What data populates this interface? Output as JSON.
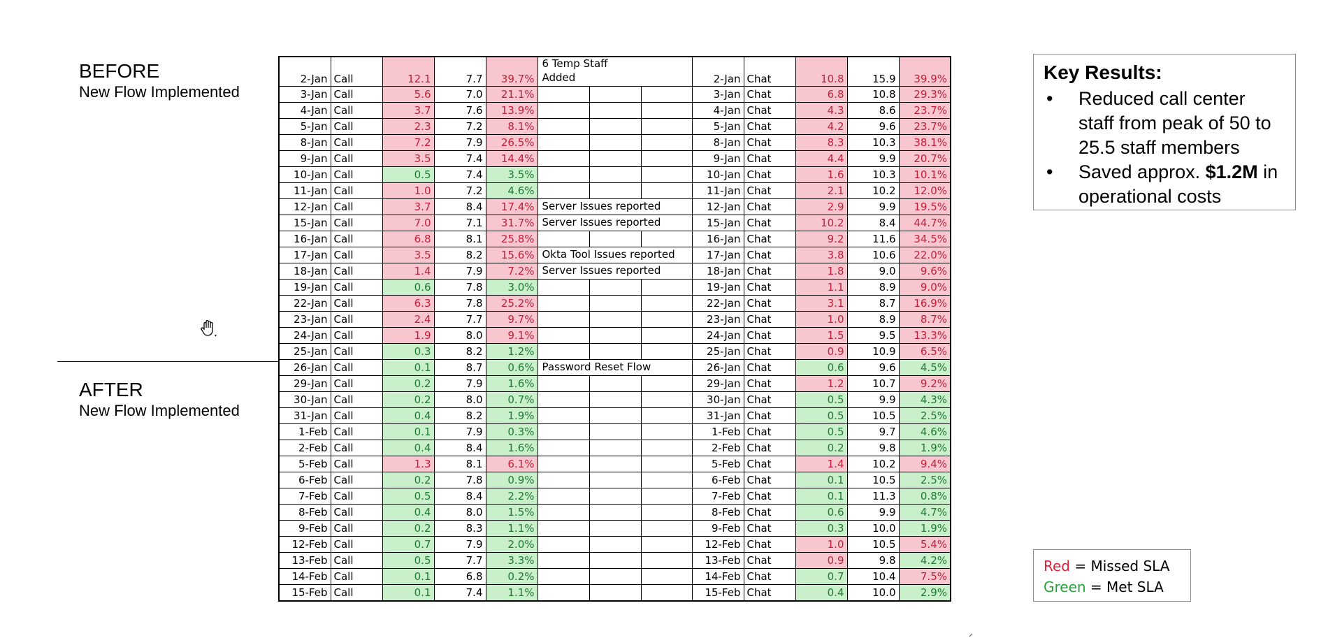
{
  "before": {
    "title": "BEFORE",
    "subtitle": "New Flow Implemented"
  },
  "after": {
    "title": "AFTER",
    "subtitle": "New Flow Implemented"
  },
  "table": {
    "rows": [
      {
        "call_date": "2-Jan",
        "call_type": "Call",
        "call_a": "12.1",
        "call_a_status": "red",
        "call_b": "7.7",
        "call_pct": "39.7%",
        "call_pct_status": "red",
        "note": "6 Temp Staff Added",
        "chat_date": "2-Jan",
        "chat_type": "Chat",
        "chat_a": "10.8",
        "chat_a_status": "red",
        "chat_b": "15.9",
        "chat_pct": "39.9%",
        "chat_pct_status": "red"
      },
      {
        "call_date": "3-Jan",
        "call_type": "Call",
        "call_a": "5.6",
        "call_a_status": "red",
        "call_b": "7.0",
        "call_pct": "21.1%",
        "call_pct_status": "red",
        "note": "",
        "chat_date": "3-Jan",
        "chat_type": "Chat",
        "chat_a": "6.8",
        "chat_a_status": "red",
        "chat_b": "10.8",
        "chat_pct": "29.3%",
        "chat_pct_status": "red"
      },
      {
        "call_date": "4-Jan",
        "call_type": "Call",
        "call_a": "3.7",
        "call_a_status": "red",
        "call_b": "7.6",
        "call_pct": "13.9%",
        "call_pct_status": "red",
        "note": "",
        "chat_date": "4-Jan",
        "chat_type": "Chat",
        "chat_a": "4.3",
        "chat_a_status": "red",
        "chat_b": "8.6",
        "chat_pct": "23.7%",
        "chat_pct_status": "red"
      },
      {
        "call_date": "5-Jan",
        "call_type": "Call",
        "call_a": "2.3",
        "call_a_status": "red",
        "call_b": "7.2",
        "call_pct": "8.1%",
        "call_pct_status": "red",
        "note": "",
        "chat_date": "5-Jan",
        "chat_type": "Chat",
        "chat_a": "4.2",
        "chat_a_status": "red",
        "chat_b": "9.6",
        "chat_pct": "23.7%",
        "chat_pct_status": "red"
      },
      {
        "call_date": "8-Jan",
        "call_type": "Call",
        "call_a": "7.2",
        "call_a_status": "red",
        "call_b": "7.9",
        "call_pct": "26.5%",
        "call_pct_status": "red",
        "note": "",
        "chat_date": "8-Jan",
        "chat_type": "Chat",
        "chat_a": "8.3",
        "chat_a_status": "red",
        "chat_b": "10.3",
        "chat_pct": "38.1%",
        "chat_pct_status": "red"
      },
      {
        "call_date": "9-Jan",
        "call_type": "Call",
        "call_a": "3.5",
        "call_a_status": "red",
        "call_b": "7.4",
        "call_pct": "14.4%",
        "call_pct_status": "red",
        "note": "",
        "chat_date": "9-Jan",
        "chat_type": "Chat",
        "chat_a": "4.4",
        "chat_a_status": "red",
        "chat_b": "9.9",
        "chat_pct": "20.7%",
        "chat_pct_status": "red"
      },
      {
        "call_date": "10-Jan",
        "call_type": "Call",
        "call_a": "0.5",
        "call_a_status": "green",
        "call_b": "7.4",
        "call_pct": "3.5%",
        "call_pct_status": "green",
        "note": "",
        "chat_date": "10-Jan",
        "chat_type": "Chat",
        "chat_a": "1.6",
        "chat_a_status": "red",
        "chat_b": "10.3",
        "chat_pct": "10.1%",
        "chat_pct_status": "red"
      },
      {
        "call_date": "11-Jan",
        "call_type": "Call",
        "call_a": "1.0",
        "call_a_status": "red",
        "call_b": "7.2",
        "call_pct": "4.6%",
        "call_pct_status": "green",
        "note": "",
        "chat_date": "11-Jan",
        "chat_type": "Chat",
        "chat_a": "2.1",
        "chat_a_status": "red",
        "chat_b": "10.2",
        "chat_pct": "12.0%",
        "chat_pct_status": "red"
      },
      {
        "call_date": "12-Jan",
        "call_type": "Call",
        "call_a": "3.7",
        "call_a_status": "red",
        "call_b": "8.4",
        "call_pct": "17.4%",
        "call_pct_status": "red",
        "note": "Server Issues reported",
        "chat_date": "12-Jan",
        "chat_type": "Chat",
        "chat_a": "2.9",
        "chat_a_status": "red",
        "chat_b": "9.9",
        "chat_pct": "19.5%",
        "chat_pct_status": "red"
      },
      {
        "call_date": "15-Jan",
        "call_type": "Call",
        "call_a": "7.0",
        "call_a_status": "red",
        "call_b": "7.1",
        "call_pct": "31.7%",
        "call_pct_status": "red",
        "note": "Server Issues reported",
        "chat_date": "15-Jan",
        "chat_type": "Chat",
        "chat_a": "10.2",
        "chat_a_status": "red",
        "chat_b": "8.4",
        "chat_pct": "44.7%",
        "chat_pct_status": "red"
      },
      {
        "call_date": "16-Jan",
        "call_type": "Call",
        "call_a": "6.8",
        "call_a_status": "red",
        "call_b": "8.1",
        "call_pct": "25.8%",
        "call_pct_status": "red",
        "note": "",
        "chat_date": "16-Jan",
        "chat_type": "Chat",
        "chat_a": "9.2",
        "chat_a_status": "red",
        "chat_b": "11.6",
        "chat_pct": "34.5%",
        "chat_pct_status": "red"
      },
      {
        "call_date": "17-Jan",
        "call_type": "Call",
        "call_a": "3.5",
        "call_a_status": "red",
        "call_b": "8.2",
        "call_pct": "15.6%",
        "call_pct_status": "red",
        "note": "Okta Tool Issues reported",
        "chat_date": "17-Jan",
        "chat_type": "Chat",
        "chat_a": "3.8",
        "chat_a_status": "red",
        "chat_b": "10.6",
        "chat_pct": "22.0%",
        "chat_pct_status": "red"
      },
      {
        "call_date": "18-Jan",
        "call_type": "Call",
        "call_a": "1.4",
        "call_a_status": "red",
        "call_b": "7.9",
        "call_pct": "7.2%",
        "call_pct_status": "red",
        "note": "Server Issues reported",
        "chat_date": "18-Jan",
        "chat_type": "Chat",
        "chat_a": "1.8",
        "chat_a_status": "red",
        "chat_b": "9.0",
        "chat_pct": "9.6%",
        "chat_pct_status": "red"
      },
      {
        "call_date": "19-Jan",
        "call_type": "Call",
        "call_a": "0.6",
        "call_a_status": "green",
        "call_b": "7.8",
        "call_pct": "3.0%",
        "call_pct_status": "green",
        "note": "",
        "chat_date": "19-Jan",
        "chat_type": "Chat",
        "chat_a": "1.1",
        "chat_a_status": "red",
        "chat_b": "8.9",
        "chat_pct": "9.0%",
        "chat_pct_status": "red"
      },
      {
        "call_date": "22-Jan",
        "call_type": "Call",
        "call_a": "6.3",
        "call_a_status": "red",
        "call_b": "7.8",
        "call_pct": "25.2%",
        "call_pct_status": "red",
        "note": "",
        "chat_date": "22-Jan",
        "chat_type": "Chat",
        "chat_a": "3.1",
        "chat_a_status": "red",
        "chat_b": "8.7",
        "chat_pct": "16.9%",
        "chat_pct_status": "red"
      },
      {
        "call_date": "23-Jan",
        "call_type": "Call",
        "call_a": "2.4",
        "call_a_status": "red",
        "call_b": "7.7",
        "call_pct": "9.7%",
        "call_pct_status": "red",
        "note": "",
        "chat_date": "23-Jan",
        "chat_type": "Chat",
        "chat_a": "1.0",
        "chat_a_status": "red",
        "chat_b": "8.9",
        "chat_pct": "8.7%",
        "chat_pct_status": "red"
      },
      {
        "call_date": "24-Jan",
        "call_type": "Call",
        "call_a": "1.9",
        "call_a_status": "red",
        "call_b": "8.0",
        "call_pct": "9.1%",
        "call_pct_status": "red",
        "note": "",
        "chat_date": "24-Jan",
        "chat_type": "Chat",
        "chat_a": "1.5",
        "chat_a_status": "red",
        "chat_b": "9.5",
        "chat_pct": "13.3%",
        "chat_pct_status": "red"
      },
      {
        "call_date": "25-Jan",
        "call_type": "Call",
        "call_a": "0.3",
        "call_a_status": "green",
        "call_b": "8.2",
        "call_pct": "1.2%",
        "call_pct_status": "green",
        "note": "",
        "chat_date": "25-Jan",
        "chat_type": "Chat",
        "chat_a": "0.9",
        "chat_a_status": "red",
        "chat_b": "10.9",
        "chat_pct": "6.5%",
        "chat_pct_status": "red"
      },
      {
        "call_date": "26-Jan",
        "call_type": "Call",
        "call_a": "0.1",
        "call_a_status": "green",
        "call_b": "8.7",
        "call_pct": "0.6%",
        "call_pct_status": "green",
        "note": "Password Reset Flow",
        "chat_date": "26-Jan",
        "chat_type": "Chat",
        "chat_a": "0.6",
        "chat_a_status": "green",
        "chat_b": "9.6",
        "chat_pct": "4.5%",
        "chat_pct_status": "green"
      },
      {
        "call_date": "29-Jan",
        "call_type": "Call",
        "call_a": "0.2",
        "call_a_status": "green",
        "call_b": "7.9",
        "call_pct": "1.6%",
        "call_pct_status": "green",
        "note": "",
        "chat_date": "29-Jan",
        "chat_type": "Chat",
        "chat_a": "1.2",
        "chat_a_status": "red",
        "chat_b": "10.7",
        "chat_pct": "9.2%",
        "chat_pct_status": "red"
      },
      {
        "call_date": "30-Jan",
        "call_type": "Call",
        "call_a": "0.2",
        "call_a_status": "green",
        "call_b": "8.0",
        "call_pct": "0.7%",
        "call_pct_status": "green",
        "note": "",
        "chat_date": "30-Jan",
        "chat_type": "Chat",
        "chat_a": "0.5",
        "chat_a_status": "green",
        "chat_b": "9.9",
        "chat_pct": "4.3%",
        "chat_pct_status": "green"
      },
      {
        "call_date": "31-Jan",
        "call_type": "Call",
        "call_a": "0.4",
        "call_a_status": "green",
        "call_b": "8.2",
        "call_pct": "1.9%",
        "call_pct_status": "green",
        "note": "",
        "chat_date": "31-Jan",
        "chat_type": "Chat",
        "chat_a": "0.5",
        "chat_a_status": "green",
        "chat_b": "10.5",
        "chat_pct": "2.5%",
        "chat_pct_status": "green"
      },
      {
        "call_date": "1-Feb",
        "call_type": "Call",
        "call_a": "0.1",
        "call_a_status": "green",
        "call_b": "7.9",
        "call_pct": "0.3%",
        "call_pct_status": "green",
        "note": "",
        "chat_date": "1-Feb",
        "chat_type": "Chat",
        "chat_a": "0.5",
        "chat_a_status": "green",
        "chat_b": "9.7",
        "chat_pct": "4.6%",
        "chat_pct_status": "green"
      },
      {
        "call_date": "2-Feb",
        "call_type": "Call",
        "call_a": "0.4",
        "call_a_status": "green",
        "call_b": "8.4",
        "call_pct": "1.6%",
        "call_pct_status": "green",
        "note": "",
        "chat_date": "2-Feb",
        "chat_type": "Chat",
        "chat_a": "0.2",
        "chat_a_status": "green",
        "chat_b": "9.8",
        "chat_pct": "1.9%",
        "chat_pct_status": "green"
      },
      {
        "call_date": "5-Feb",
        "call_type": "Call",
        "call_a": "1.3",
        "call_a_status": "red",
        "call_b": "8.1",
        "call_pct": "6.1%",
        "call_pct_status": "red",
        "note": "",
        "chat_date": "5-Feb",
        "chat_type": "Chat",
        "chat_a": "1.4",
        "chat_a_status": "red",
        "chat_b": "10.2",
        "chat_pct": "9.4%",
        "chat_pct_status": "red"
      },
      {
        "call_date": "6-Feb",
        "call_type": "Call",
        "call_a": "0.2",
        "call_a_status": "green",
        "call_b": "7.8",
        "call_pct": "0.9%",
        "call_pct_status": "green",
        "note": "",
        "chat_date": "6-Feb",
        "chat_type": "Chat",
        "chat_a": "0.1",
        "chat_a_status": "green",
        "chat_b": "10.5",
        "chat_pct": "2.5%",
        "chat_pct_status": "green"
      },
      {
        "call_date": "7-Feb",
        "call_type": "Call",
        "call_a": "0.5",
        "call_a_status": "green",
        "call_b": "8.4",
        "call_pct": "2.2%",
        "call_pct_status": "green",
        "note": "",
        "chat_date": "7-Feb",
        "chat_type": "Chat",
        "chat_a": "0.1",
        "chat_a_status": "green",
        "chat_b": "11.3",
        "chat_pct": "0.8%",
        "chat_pct_status": "green"
      },
      {
        "call_date": "8-Feb",
        "call_type": "Call",
        "call_a": "0.4",
        "call_a_status": "green",
        "call_b": "8.0",
        "call_pct": "1.5%",
        "call_pct_status": "green",
        "note": "",
        "chat_date": "8-Feb",
        "chat_type": "Chat",
        "chat_a": "0.6",
        "chat_a_status": "green",
        "chat_b": "9.9",
        "chat_pct": "4.7%",
        "chat_pct_status": "green"
      },
      {
        "call_date": "9-Feb",
        "call_type": "Call",
        "call_a": "0.2",
        "call_a_status": "green",
        "call_b": "8.3",
        "call_pct": "1.1%",
        "call_pct_status": "green",
        "note": "",
        "chat_date": "9-Feb",
        "chat_type": "Chat",
        "chat_a": "0.3",
        "chat_a_status": "green",
        "chat_b": "10.0",
        "chat_pct": "1.9%",
        "chat_pct_status": "green"
      },
      {
        "call_date": "12-Feb",
        "call_type": "Call",
        "call_a": "0.7",
        "call_a_status": "green",
        "call_b": "7.9",
        "call_pct": "2.0%",
        "call_pct_status": "green",
        "note": "",
        "chat_date": "12-Feb",
        "chat_type": "Chat",
        "chat_a": "1.0",
        "chat_a_status": "red",
        "chat_b": "10.5",
        "chat_pct": "5.4%",
        "chat_pct_status": "red"
      },
      {
        "call_date": "13-Feb",
        "call_type": "Call",
        "call_a": "0.5",
        "call_a_status": "green",
        "call_b": "7.7",
        "call_pct": "3.3%",
        "call_pct_status": "green",
        "note": "",
        "chat_date": "13-Feb",
        "chat_type": "Chat",
        "chat_a": "0.9",
        "chat_a_status": "red",
        "chat_b": "9.8",
        "chat_pct": "4.2%",
        "chat_pct_status": "green"
      },
      {
        "call_date": "14-Feb",
        "call_type": "Call",
        "call_a": "0.1",
        "call_a_status": "green",
        "call_b": "6.8",
        "call_pct": "0.2%",
        "call_pct_status": "green",
        "note": "",
        "chat_date": "14-Feb",
        "chat_type": "Chat",
        "chat_a": "0.7",
        "chat_a_status": "green",
        "chat_b": "10.4",
        "chat_pct": "7.5%",
        "chat_pct_status": "red"
      },
      {
        "call_date": "15-Feb",
        "call_type": "Call",
        "call_a": "0.1",
        "call_a_status": "green",
        "call_b": "7.4",
        "call_pct": "1.1%",
        "call_pct_status": "green",
        "note": "",
        "chat_date": "15-Feb",
        "chat_type": "Chat",
        "chat_a": "0.4",
        "chat_a_status": "green",
        "chat_b": "10.0",
        "chat_pct": "2.9%",
        "chat_pct_status": "green"
      }
    ]
  },
  "key_results": {
    "title": "Key Results:",
    "items": [
      {
        "bullet": "•",
        "text": "Reduced call center staff from peak of 50 to 25.5 staff members"
      },
      {
        "bullet": "•",
        "text_before": "Saved approx. ",
        "bold": "$1.2M",
        "text_after": " in operational costs"
      }
    ]
  },
  "legend": {
    "red_word": "Red",
    "red_rest": " = Missed SLA",
    "green_word": "Green",
    "green_rest": " = Met SLA",
    "red_color": "#e0203a",
    "green_color": "#22a33b",
    "red_fill": "#f7c6cf",
    "green_fill": "#c9efcb"
  },
  "icons": {
    "cursor": "hand-cursor-icon"
  }
}
